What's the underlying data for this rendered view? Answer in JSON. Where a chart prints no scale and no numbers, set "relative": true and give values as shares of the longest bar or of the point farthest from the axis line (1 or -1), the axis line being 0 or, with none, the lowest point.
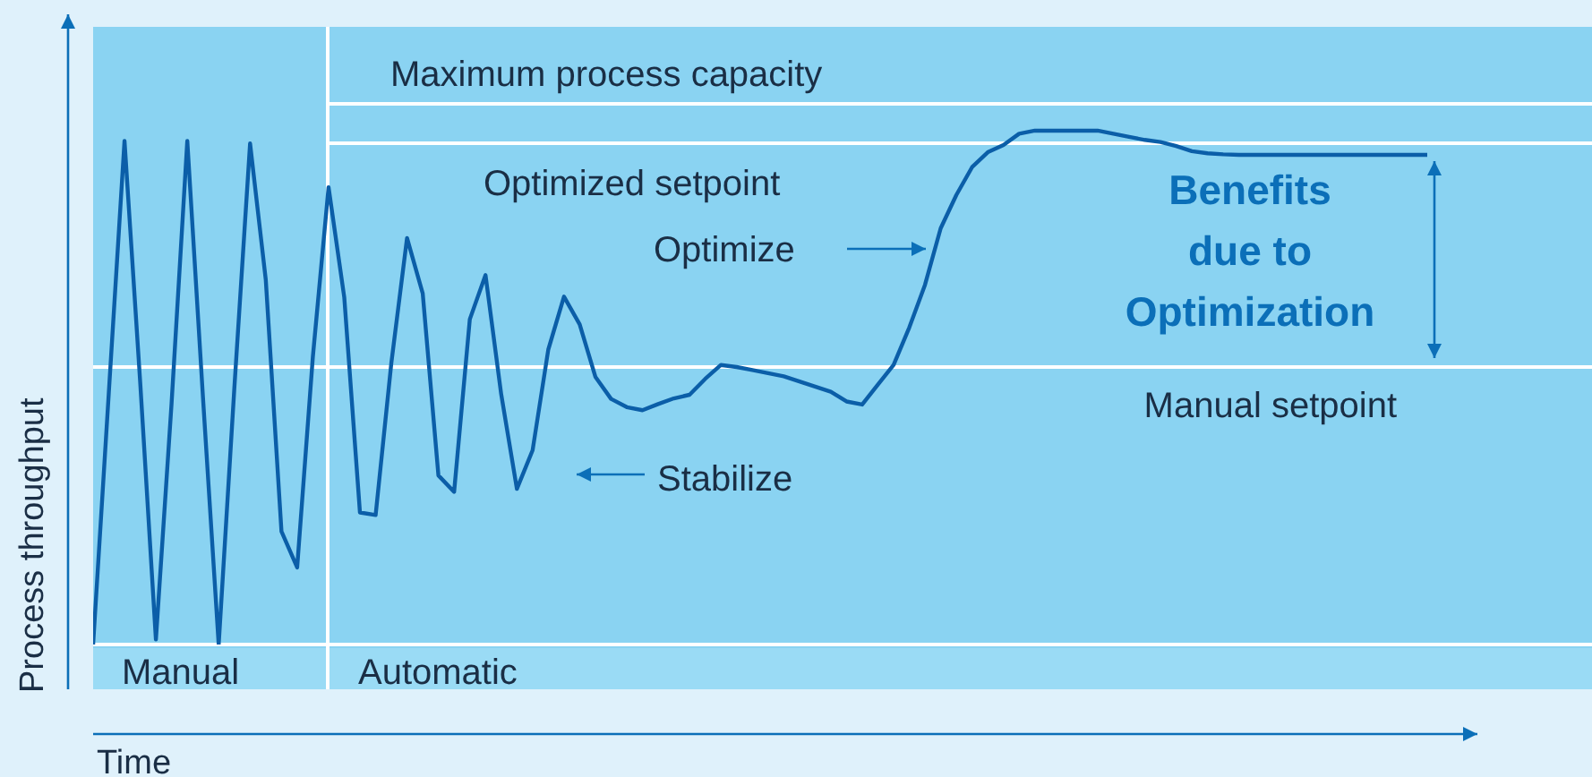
{
  "chart_data": {
    "type": "line",
    "relative": true,
    "xlabel": "Time",
    "ylabel": "Process throughput",
    "marker": "none",
    "line_style": "solid",
    "categories": [
      null,
      null,
      null,
      null,
      null,
      null,
      null,
      null,
      null,
      null,
      null,
      null,
      null,
      null,
      null,
      null,
      null,
      null,
      null,
      null,
      null,
      null,
      null,
      null,
      null,
      null,
      null,
      null,
      null,
      null,
      null,
      null,
      null,
      null,
      null,
      null,
      null,
      null,
      null,
      null,
      null,
      null,
      null,
      null,
      null,
      null,
      null,
      null,
      null,
      null,
      null,
      null,
      null,
      null,
      null,
      null,
      null,
      null,
      null,
      null,
      null,
      null,
      null,
      null,
      null,
      null,
      null,
      null,
      null,
      null,
      null,
      null,
      null,
      null,
      null,
      null,
      null,
      null,
      null,
      null,
      null,
      null,
      null,
      null,
      null,
      null
    ],
    "series": [
      {
        "color": "#0b5ea8",
        "values": [
          0,
          0.49,
          0.98,
          0.51,
          0.01,
          0.47,
          0.98,
          0.48,
          0,
          0.5,
          0.975,
          0.71,
          0.22,
          0.15,
          0.56,
          0.89,
          0.676,
          0.257,
          0.252,
          0.548,
          0.791,
          0.683,
          0.329,
          0.297,
          0.633,
          0.719,
          0.487,
          0.303,
          0.378,
          0.574,
          0.677,
          0.623,
          0.521,
          0.478,
          0.462,
          0.456,
          0.468,
          0.479,
          0.486,
          0.517,
          0.544,
          0.54,
          0.534,
          0.528,
          0.522,
          0.512,
          0.502,
          0.492,
          0.473,
          0.467,
          0.506,
          0.544,
          0.617,
          0.7,
          0.81,
          0.875,
          0.929,
          0.958,
          0.972,
          0.994,
          1,
          1,
          1,
          1,
          1,
          0.994,
          0.988,
          0.982,
          0.978,
          0.97,
          0.96,
          0.956,
          0.954,
          0.953,
          0.953,
          0.953,
          0.953,
          0.953,
          0.953,
          0.953,
          0.953,
          0.953,
          0.953,
          0.953,
          0.953,
          0.953
        ]
      }
    ],
    "annotations": [
      "Maximum process capacity",
      "Optimized setpoint",
      "Optimize",
      "Stabilize",
      "Benefits due to Optimization",
      "Manual setpoint",
      "Manual",
      "Automatic"
    ]
  }
}
